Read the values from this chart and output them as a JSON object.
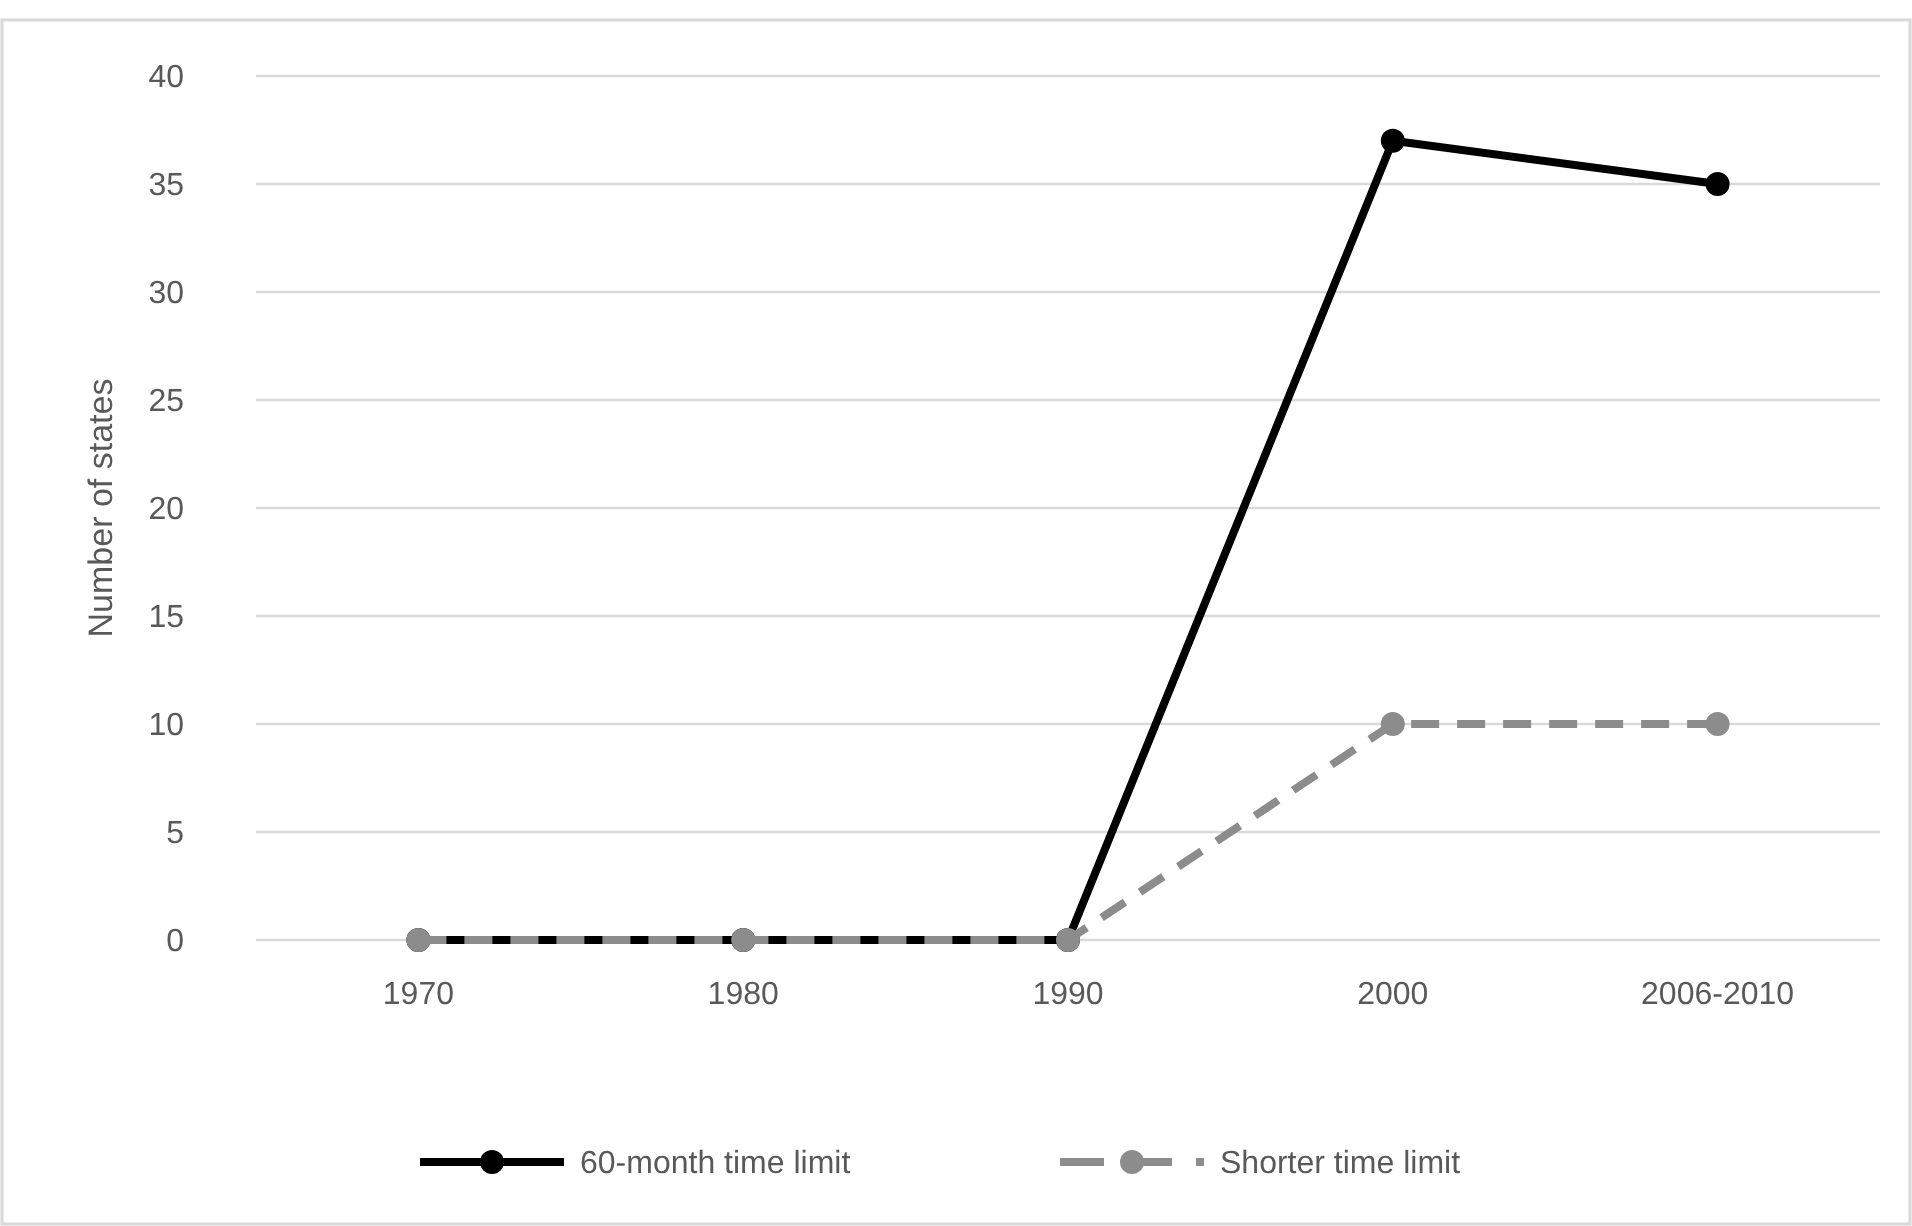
{
  "chart_data": {
    "type": "line",
    "ylabel": "Number of states",
    "categories": [
      "1970",
      "1980",
      "1990",
      "2000",
      "2006-2010"
    ],
    "series": [
      {
        "name": "60-month time limit",
        "color": "#000000",
        "values": [
          0,
          0,
          0,
          37,
          35
        ],
        "line_style": "solid"
      },
      {
        "name": "Shorter time limit",
        "color": "#8c8c8c",
        "values": [
          0,
          0,
          0,
          10,
          10
        ],
        "line_style": "dashed"
      }
    ],
    "ylim": [
      0,
      40
    ],
    "yticks": [
      0,
      5,
      10,
      15,
      20,
      25,
      30,
      35,
      40
    ],
    "grid": "y",
    "legend": "bottom",
    "marker": "circle"
  }
}
